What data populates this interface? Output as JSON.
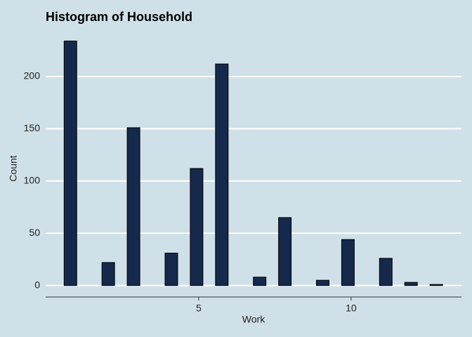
{
  "chart_data": {
    "type": "histogram",
    "title": "Histogram of Household",
    "x_label": "Work",
    "y_label": "Count",
    "bins": [
      0.586,
      1.0,
      1.414,
      1.828,
      2.241,
      2.655,
      3.069,
      3.483,
      3.897,
      4.31,
      4.724,
      5.138,
      5.552,
      5.966,
      6.379,
      6.793,
      7.207,
      7.621,
      8.034,
      8.448,
      8.862,
      9.276,
      9.69,
      10.103,
      10.517,
      10.931,
      11.345,
      11.759,
      12.172,
      12.586,
      13.0
    ],
    "values": [
      234,
      0,
      0,
      22,
      0,
      151,
      0,
      0,
      31,
      0,
      112,
      0,
      212,
      0,
      0,
      8,
      0,
      65,
      0,
      0,
      5,
      0,
      44,
      0,
      0,
      26,
      0,
      3,
      0,
      1
    ],
    "color": "#14294b",
    "xlim": [
      -0.02,
      13.62
    ],
    "xticks": [
      5,
      10
    ],
    "ylim": [
      -11,
      243
    ],
    "yticks": [
      0,
      50,
      100,
      150,
      200
    ],
    "grid": true
  }
}
